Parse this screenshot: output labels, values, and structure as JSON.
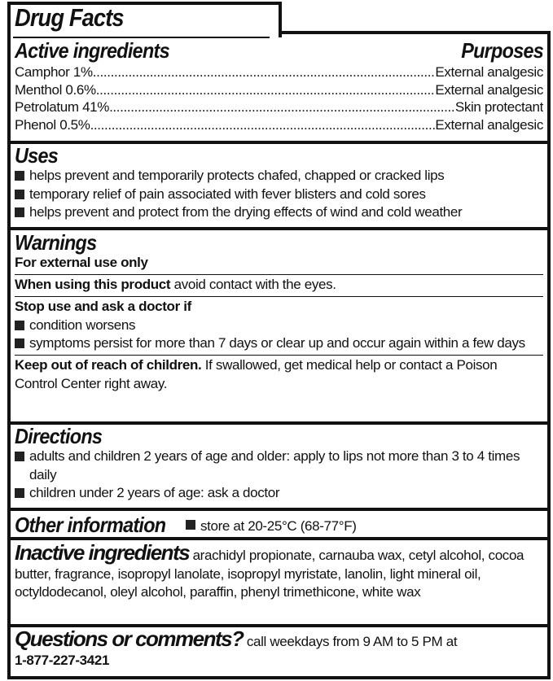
{
  "title": "Drug Facts",
  "active": {
    "heading": "Active ingredients",
    "purposes_heading": "Purposes",
    "rows": [
      {
        "ingredient": "Camphor 1%",
        "purpose": "External analgesic"
      },
      {
        "ingredient": "Menthol 0.6%",
        "purpose": "External analgesic"
      },
      {
        "ingredient": "Petrolatum 41%",
        "purpose": "Skin protectant"
      },
      {
        "ingredient": "Phenol 0.5%",
        "purpose": "External analgesic"
      }
    ]
  },
  "uses": {
    "heading": "Uses",
    "items": [
      "helps prevent and temporarily protects chafed, chapped or cracked lips",
      "temporary relief of pain associated with fever blisters and cold sores",
      "helps prevent and protect from the drying effects of wind and cold weather"
    ]
  },
  "warnings": {
    "heading": "Warnings",
    "external": "For external use only",
    "when_using_bold": "When using this product",
    "when_using_text": " avoid contact with the eyes.",
    "stop_use": "Stop use and ask a doctor if",
    "stop_items": [
      "condition worsens",
      "symptoms persist for more than 7 days or clear up and occur again within a few days"
    ],
    "keep_out_bold": "Keep out of reach of children.",
    "keep_out_text": " If swallowed, get medical help or contact a Poison Control Center right away."
  },
  "directions": {
    "heading": "Directions",
    "items": [
      "adults and children 2 years of age and older: apply to lips not more than 3 to 4 times daily",
      "children under 2 years of age: ask a doctor"
    ]
  },
  "other": {
    "heading": "Other information",
    "item": "store at 20-25°C (68-77°F)"
  },
  "inactive": {
    "heading": "Inactive ingredients",
    "text": "arachidyl propionate, carnauba wax, cetyl alcohol, cocoa butter, fragrance, isopropyl lanolate, isopropyl myristate, lanolin, light mineral oil, octyldodecanol, oleyl alcohol, paraffin, phenyl trimethicone, white wax"
  },
  "questions": {
    "heading": "Questions or comments?",
    "text": "call weekdays from 9 AM to 5 PM at",
    "phone": "1-877-227-3421"
  }
}
